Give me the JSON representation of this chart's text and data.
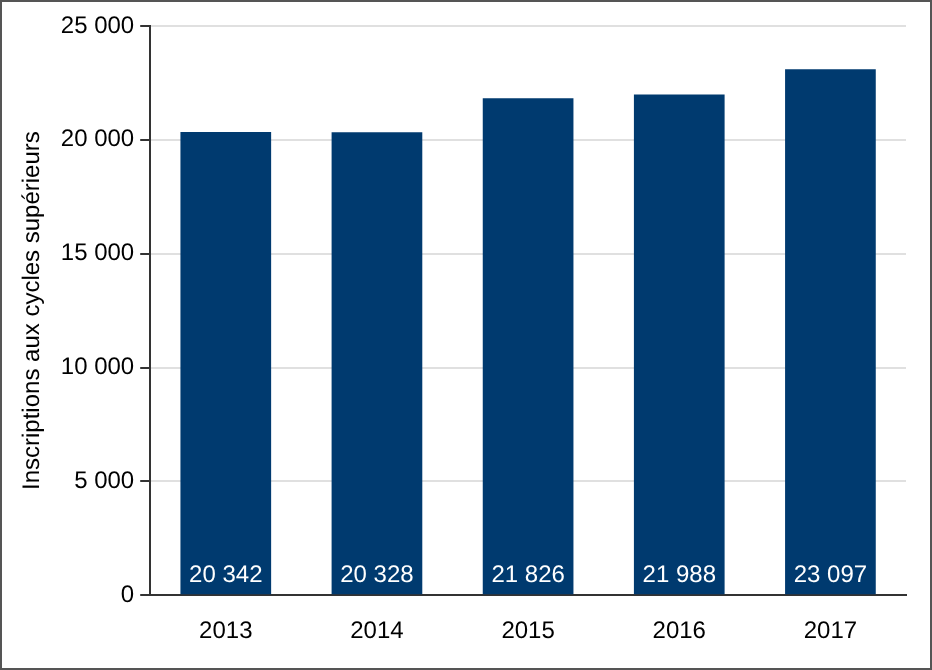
{
  "chart_data": {
    "type": "bar",
    "ylabel": "Inscriptions aux cycles supérieurs",
    "categories": [
      "2013",
      "2014",
      "2015",
      "2016",
      "2017"
    ],
    "values": [
      20342,
      20328,
      21826,
      21988,
      23097
    ],
    "value_labels": [
      "20 342",
      "20 328",
      "21 826",
      "21 988",
      "23 097"
    ],
    "color": "#003a6f",
    "ylim": [
      0,
      25000
    ],
    "yticks": [
      {
        "value": 0,
        "label": "0"
      },
      {
        "value": 5000,
        "label": "5 000"
      },
      {
        "value": 10000,
        "label": "10 000"
      },
      {
        "value": 15000,
        "label": "15 000"
      },
      {
        "value": 20000,
        "label": "20 000"
      },
      {
        "value": 25000,
        "label": "25 000"
      }
    ],
    "grid": "y"
  }
}
